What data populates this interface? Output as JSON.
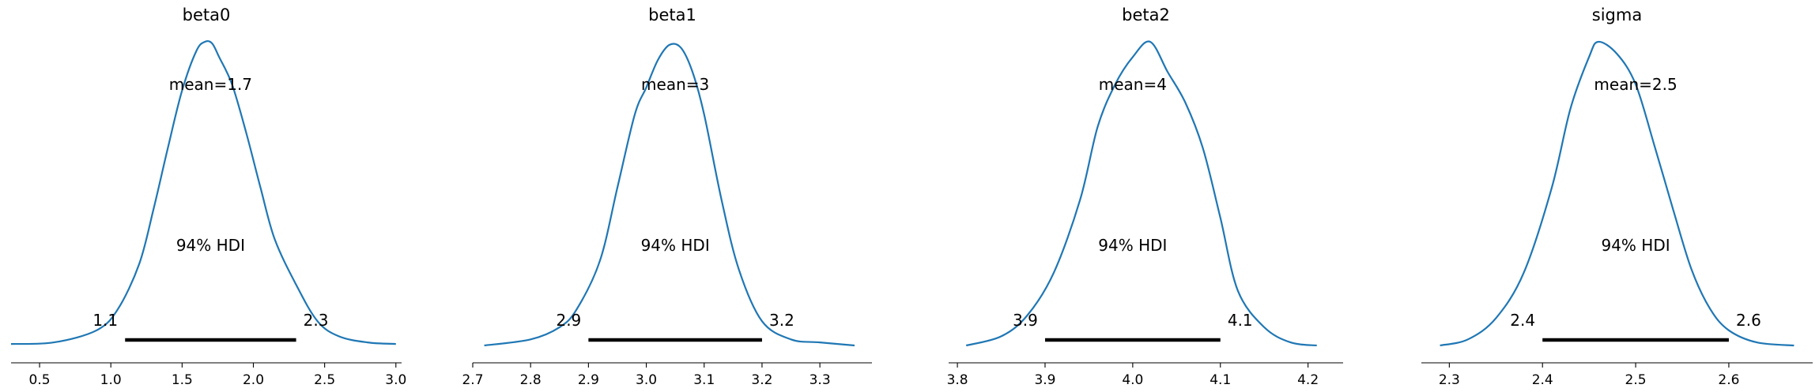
{
  "chart_data": [
    {
      "type": "area",
      "title": "beta0",
      "mean_label": "mean=1.7",
      "hdi_label": "94% HDI",
      "hdi": [
        1.1,
        2.3
      ],
      "hdi_labels": [
        "1.1",
        "2.3"
      ],
      "xlim": [
        0.3,
        3.04
      ],
      "xticks": [
        0.5,
        1.0,
        1.5,
        2.0,
        2.5,
        3.0
      ],
      "xtick_labels": [
        "0.5",
        "1.0",
        "1.5",
        "2.0",
        "2.5",
        "3.0"
      ],
      "density": {
        "x": [
          0.3,
          0.6,
          0.9,
          1.05,
          1.2,
          1.3,
          1.4,
          1.5,
          1.6,
          1.66,
          1.71,
          1.76,
          1.85,
          1.95,
          2.05,
          2.15,
          2.3,
          2.45,
          2.6,
          2.8,
          3.0
        ],
        "y": [
          0.005,
          0.01,
          0.05,
          0.12,
          0.27,
          0.45,
          0.65,
          0.84,
          0.97,
          1.0,
          0.995,
          0.95,
          0.86,
          0.7,
          0.52,
          0.35,
          0.2,
          0.08,
          0.03,
          0.01,
          0.005
        ]
      }
    },
    {
      "type": "area",
      "title": "beta1",
      "mean_label": "mean=3",
      "hdi_label": "94% HDI",
      "hdi": [
        2.9,
        3.2
      ],
      "hdi_labels": [
        "2.9",
        "3.2"
      ],
      "xlim": [
        2.7,
        3.39
      ],
      "xticks": [
        2.7,
        2.8,
        2.9,
        3.0,
        3.1,
        3.2,
        3.3
      ],
      "xtick_labels": [
        "2.7",
        "2.8",
        "2.9",
        "3.0",
        "3.1",
        "3.2",
        "3.3"
      ],
      "density": {
        "x": [
          2.72,
          2.8,
          2.85,
          2.88,
          2.92,
          2.95,
          2.98,
          3.0,
          3.02,
          3.04,
          3.06,
          3.08,
          3.1,
          3.13,
          3.16,
          3.2,
          3.25,
          3.3,
          3.36
        ],
        "y": [
          0.0,
          0.02,
          0.06,
          0.12,
          0.28,
          0.52,
          0.76,
          0.85,
          0.94,
          0.99,
          0.98,
          0.9,
          0.76,
          0.48,
          0.25,
          0.08,
          0.02,
          0.01,
          0.0
        ]
      }
    },
    {
      "type": "area",
      "title": "beta2",
      "mean_label": "mean=4",
      "hdi_label": "94% HDI",
      "hdi": [
        3.9,
        4.1
      ],
      "hdi_labels": [
        "3.9",
        "4.1"
      ],
      "xlim": [
        3.79,
        4.24
      ],
      "xticks": [
        3.8,
        3.9,
        4.0,
        4.1,
        4.2
      ],
      "xtick_labels": [
        "3.8",
        "3.9",
        "4.0",
        "4.1",
        "4.2"
      ],
      "density": {
        "x": [
          3.81,
          3.85,
          3.88,
          3.91,
          3.94,
          3.96,
          3.98,
          4.0,
          4.02,
          4.04,
          4.06,
          4.08,
          4.1,
          4.12,
          4.15,
          4.18,
          4.21
        ],
        "y": [
          0.0,
          0.03,
          0.1,
          0.24,
          0.48,
          0.72,
          0.86,
          0.95,
          1.0,
          0.9,
          0.8,
          0.65,
          0.42,
          0.18,
          0.06,
          0.01,
          0.0
        ]
      }
    },
    {
      "type": "area",
      "title": "sigma",
      "mean_label": "mean=2.5",
      "hdi_label": "94% HDI",
      "hdi": [
        2.4,
        2.6
      ],
      "hdi_labels": [
        "2.4",
        "2.6"
      ],
      "xlim": [
        2.27,
        2.69
      ],
      "xticks": [
        2.3,
        2.4,
        2.5,
        2.6
      ],
      "xtick_labels": [
        "2.3",
        "2.4",
        "2.5",
        "2.6"
      ],
      "density": {
        "x": [
          2.29,
          2.32,
          2.35,
          2.38,
          2.41,
          2.43,
          2.45,
          2.46,
          2.48,
          2.5,
          2.52,
          2.54,
          2.56,
          2.58,
          2.6,
          2.63,
          2.67
        ],
        "y": [
          0.0,
          0.02,
          0.09,
          0.24,
          0.52,
          0.78,
          0.95,
          1.0,
          0.96,
          0.86,
          0.66,
          0.45,
          0.25,
          0.12,
          0.05,
          0.01,
          0.0
        ]
      }
    }
  ]
}
